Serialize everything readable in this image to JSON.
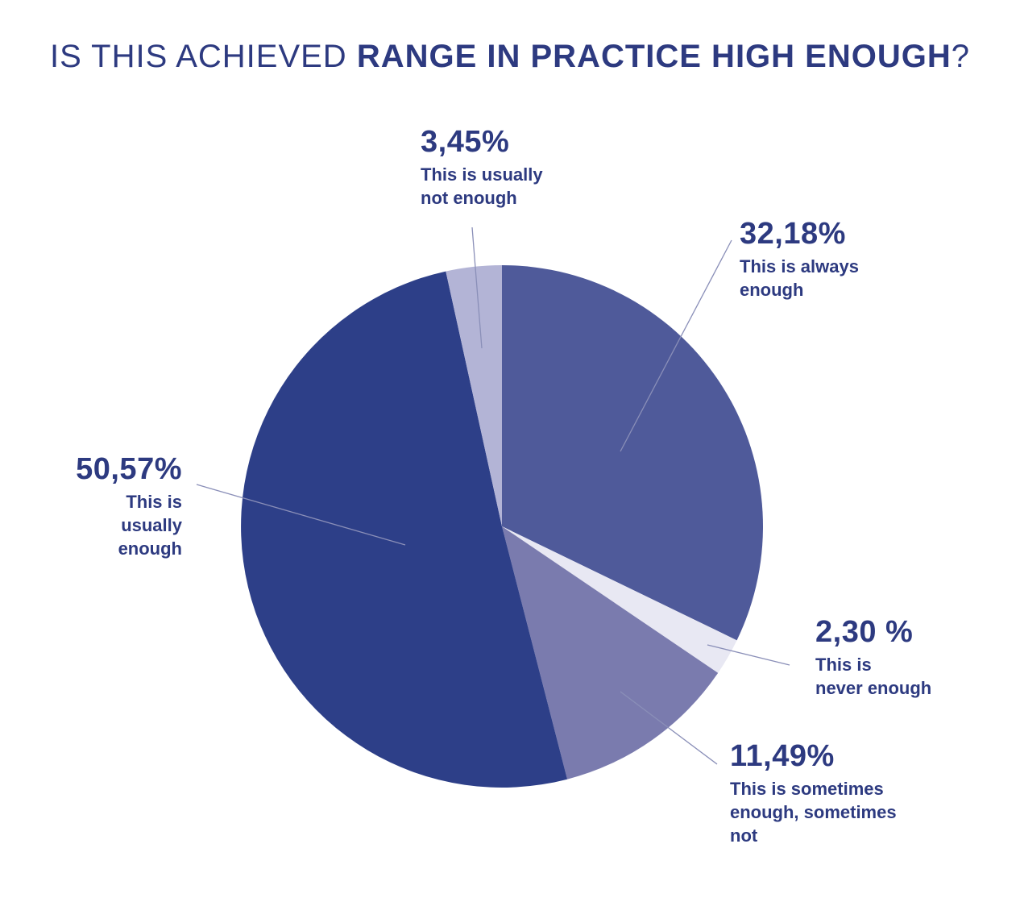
{
  "title": {
    "light": "IS THIS ACHIEVED ",
    "bold": "RANGE IN PRACTICE HIGH ENOUGH",
    "end": "?"
  },
  "chart_data": {
    "type": "pie",
    "title": "IS THIS ACHIEVED RANGE IN PRACTICE HIGH ENOUGH?",
    "slices": [
      {
        "label": "This is always enough",
        "value": 32.18,
        "display": "32,18%",
        "color": "#4f5a9a"
      },
      {
        "label": "This is never enough",
        "value": 2.3,
        "display": "2,30 %",
        "color": "#e8e8f3"
      },
      {
        "label": "This is sometimes enough, sometimes not",
        "value": 11.49,
        "display": "11,49%",
        "color": "#7a7bae"
      },
      {
        "label": "This is usually enough",
        "value": 50.57,
        "display": "50,57%",
        "color": "#2d3f88"
      },
      {
        "label": "This is usually not enough",
        "value": 3.45,
        "display": "3,45%",
        "color": "#b3b4d6"
      }
    ],
    "start_angle": "12 o'clock",
    "direction": "clockwise"
  },
  "labels": {
    "always": {
      "pct": "32,18%",
      "line1": "This is always",
      "line2": "enough"
    },
    "never": {
      "pct": "2,30 %",
      "line1": "This is",
      "line2": "never enough"
    },
    "sometimes": {
      "pct": "11,49%",
      "line1": "This is sometimes",
      "line2": "enough, sometimes",
      "line3": "not"
    },
    "usually": {
      "pct": "50,57%",
      "line1": "This is",
      "line2": "usually",
      "line3": "enough"
    },
    "usually_not": {
      "pct": "3,45%",
      "line1": "This is usually",
      "line2": "not enough"
    }
  },
  "leader_color": "#8a8fb8"
}
